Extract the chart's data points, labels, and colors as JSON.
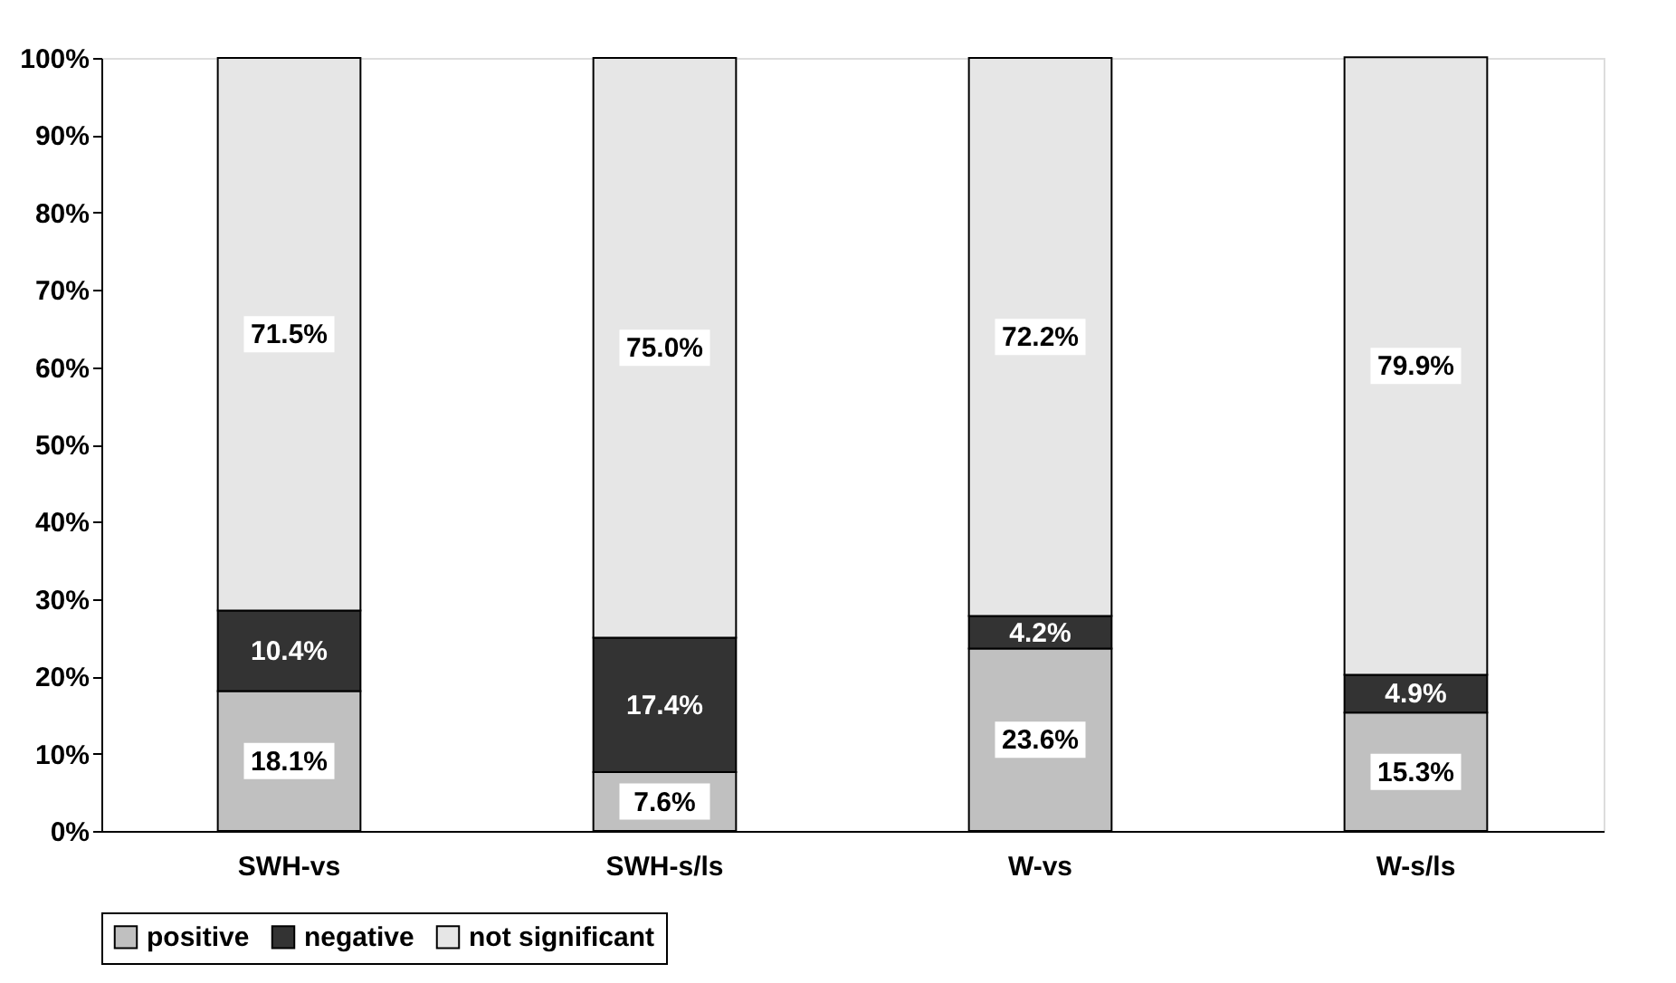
{
  "chart_data": {
    "type": "bar",
    "stacked": true,
    "categories": [
      "SWH-vs",
      "SWH-s/ls",
      "W-vs",
      "W-s/ls"
    ],
    "series": [
      {
        "name": "positive",
        "color": "#c0c0c0",
        "values": [
          18.1,
          7.6,
          23.6,
          15.3
        ],
        "value_labels": [
          "18.1%",
          "7.6%",
          "23.6%",
          "15.3%"
        ]
      },
      {
        "name": "negative",
        "color": "#333333",
        "values": [
          10.4,
          17.4,
          4.2,
          4.9
        ],
        "value_labels": [
          "10.4%",
          "17.4%",
          "4.2%",
          "4.9%"
        ]
      },
      {
        "name": "not significant",
        "color": "#e6e6e6",
        "values": [
          71.5,
          75.0,
          72.2,
          79.9
        ],
        "value_labels": [
          "71.5%",
          "75.0%",
          "72.2%",
          "79.9%"
        ]
      }
    ],
    "ylim": [
      0,
      100
    ],
    "yticks": [
      {
        "value": 0,
        "label": "0%"
      },
      {
        "value": 10,
        "label": "10%"
      },
      {
        "value": 20,
        "label": "20%"
      },
      {
        "value": 30,
        "label": "30%"
      },
      {
        "value": 40,
        "label": "40%"
      },
      {
        "value": 50,
        "label": "50%"
      },
      {
        "value": 60,
        "label": "60%"
      },
      {
        "value": 70,
        "label": "70%"
      },
      {
        "value": 80,
        "label": "80%"
      },
      {
        "value": 90,
        "label": "90%"
      },
      {
        "value": 100,
        "label": "100%"
      }
    ],
    "grid": false,
    "legend": "bottom"
  }
}
